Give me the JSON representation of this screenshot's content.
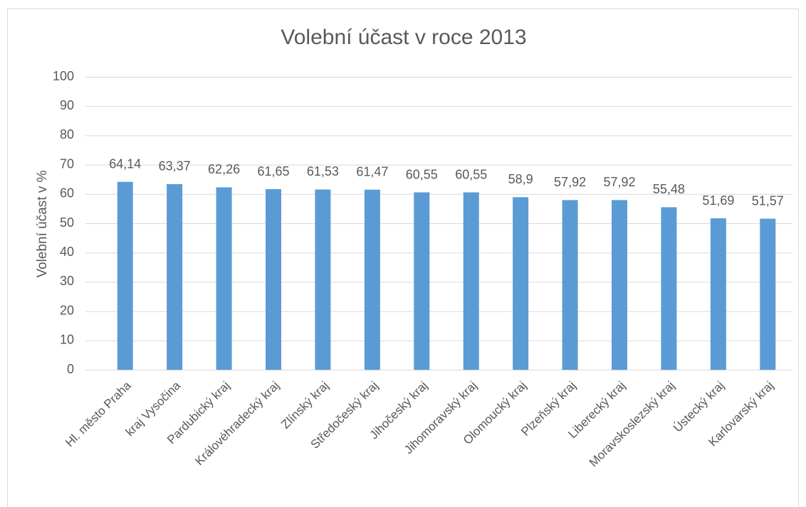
{
  "chart_data": {
    "type": "bar",
    "title": "Volební účast v roce 2013",
    "y_label": "Volební účast v %",
    "categories": [
      "Hl. město Praha",
      "kraj Vysočina",
      "Pardubický kraj",
      "Královéhradecký kraj",
      "Zlínský kraj",
      "Středočeský kraj",
      "Jihočeský kraj",
      "Jihomoravský kraj",
      "Olomoucký kraj",
      "Plzeňský kraj",
      "Liberecký kraj",
      "Moravskoslezský kraj",
      "Ústecký kraj",
      "Karlovarský kraj"
    ],
    "values": [
      64.14,
      63.37,
      62.26,
      61.65,
      61.53,
      61.47,
      60.55,
      60.55,
      58.9,
      57.92,
      57.92,
      55.48,
      51.69,
      51.57
    ],
    "value_labels": [
      "64,14",
      "63,37",
      "62,26",
      "61,65",
      "61,53",
      "61,47",
      "60,55",
      "60,55",
      "58,9",
      "57,92",
      "57,92",
      "55,48",
      "51,69",
      "51,57"
    ],
    "color": "#5b9bd5",
    "ylim": [
      0,
      100
    ],
    "yticks": [
      0,
      10,
      20,
      30,
      40,
      50,
      60,
      70,
      80,
      90,
      100
    ],
    "grid": true
  }
}
